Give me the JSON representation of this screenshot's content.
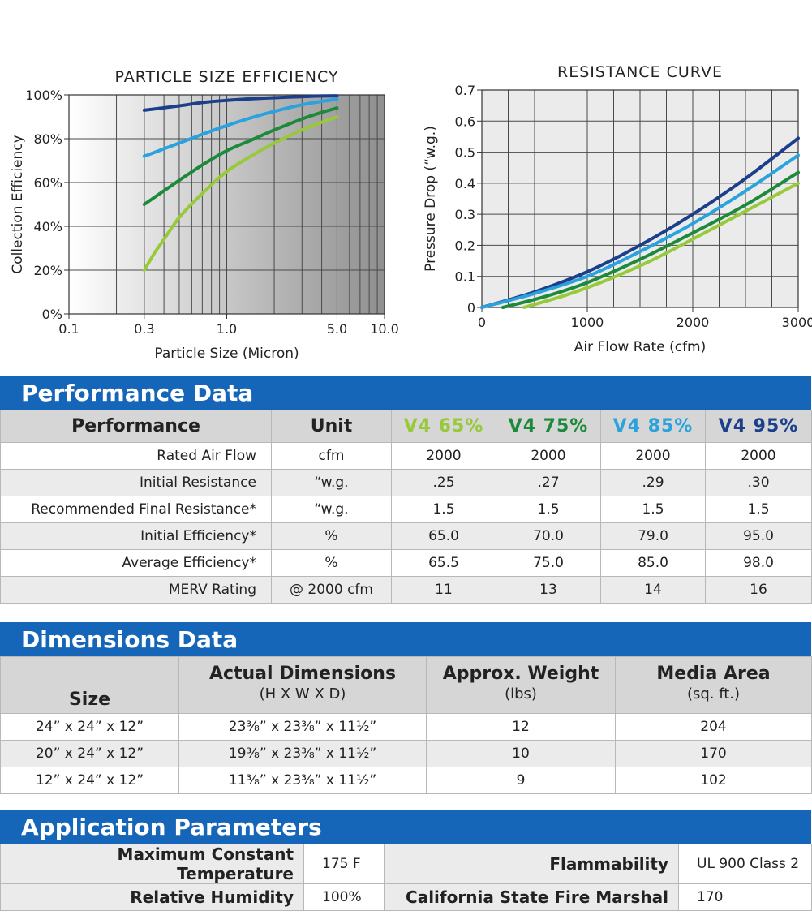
{
  "chart_data": [
    {
      "type": "line",
      "title": "PARTICLE SIZE EFFICIENCY",
      "xlabel": "Particle Size (Micron)",
      "ylabel": "Collection Efficiency",
      "x_scale": "log",
      "xlim": [
        0.1,
        10.0
      ],
      "ylim": [
        0,
        100
      ],
      "x_ticks": [
        "0.1",
        "0.3",
        "1.0",
        "5.0",
        "10.0"
      ],
      "x_tick_values": [
        0.1,
        0.3,
        1.0,
        5.0,
        10.0
      ],
      "y_ticks": [
        "0%",
        "20%",
        "40%",
        "60%",
        "80%",
        "100%"
      ],
      "y_tick_values": [
        0,
        20,
        40,
        60,
        80,
        100
      ],
      "grid": true,
      "series": [
        {
          "color": "#1c3f8c",
          "x": [
            0.3,
            0.5,
            0.7,
            1.0,
            1.5,
            2.0,
            3.0,
            4.0,
            5.0
          ],
          "y": [
            93,
            95,
            96.5,
            97.5,
            98.3,
            98.7,
            99.2,
            99.5,
            99.6
          ]
        },
        {
          "color": "#2aa2dd",
          "x": [
            0.3,
            0.5,
            0.7,
            1.0,
            1.5,
            2.0,
            3.0,
            4.0,
            5.0
          ],
          "y": [
            72,
            78,
            82,
            86,
            90,
            92.5,
            95.5,
            97,
            98
          ]
        },
        {
          "color": "#1c8a3a",
          "x": [
            0.3,
            0.5,
            0.7,
            1.0,
            1.5,
            2.0,
            3.0,
            4.0,
            5.0
          ],
          "y": [
            50,
            61,
            68,
            74.5,
            80,
            84,
            89,
            92,
            94
          ]
        },
        {
          "color": "#97c93a",
          "x": [
            0.3,
            0.35,
            0.4,
            0.5,
            0.7,
            1.0,
            1.5,
            2.0,
            3.0,
            4.0,
            5.0
          ],
          "y": [
            20,
            28,
            34,
            44,
            55,
            65,
            73,
            78,
            84,
            87.5,
            90
          ]
        }
      ]
    },
    {
      "type": "line",
      "title": "RESISTANCE CURVE",
      "xlabel": "Air Flow Rate (cfm)",
      "ylabel": "Pressure Drop (“w.g.)",
      "xlim": [
        0,
        3000
      ],
      "ylim": [
        0,
        0.7
      ],
      "x_ticks": [
        "0",
        "1000",
        "2000",
        "3000"
      ],
      "x_tick_values": [
        0,
        1000,
        2000,
        3000
      ],
      "y_ticks": [
        "0",
        "0.1",
        "0.2",
        "0.3",
        "0.4",
        "0.5",
        "0.6",
        "0.7"
      ],
      "y_tick_values": [
        0,
        0.1,
        0.2,
        0.3,
        0.4,
        0.5,
        0.6,
        0.7
      ],
      "grid": true,
      "series": [
        {
          "color": "#1c3f8c",
          "x": [
            0,
            500,
            1000,
            1500,
            2000,
            2500,
            3000
          ],
          "y": [
            0,
            0.05,
            0.115,
            0.2,
            0.3,
            0.415,
            0.545
          ]
        },
        {
          "color": "#2aa2dd",
          "x": [
            0,
            500,
            1000,
            1500,
            2000,
            2500,
            3000
          ],
          "y": [
            0,
            0.045,
            0.1,
            0.18,
            0.27,
            0.375,
            0.49
          ]
        },
        {
          "color": "#1c8a3a",
          "x": [
            200,
            600,
            1000,
            1500,
            2000,
            2500,
            3000
          ],
          "y": [
            0,
            0.035,
            0.08,
            0.155,
            0.24,
            0.33,
            0.435
          ]
        },
        {
          "color": "#97c93a",
          "x": [
            400,
            800,
            1200,
            1600,
            2000,
            2500,
            3000
          ],
          "y": [
            0,
            0.04,
            0.09,
            0.15,
            0.22,
            0.31,
            0.4
          ]
        }
      ]
    }
  ],
  "performance": {
    "heading": "Performance Data",
    "col_performance": "Performance",
    "col_unit": "Unit",
    "products": [
      "V4 65%",
      "V4 75%",
      "V4 85%",
      "V4 95%"
    ],
    "rows": [
      {
        "label": "Rated Air Flow",
        "unit": "cfm",
        "values": [
          "2000",
          "2000",
          "2000",
          "2000"
        ]
      },
      {
        "label": "Initial Resistance",
        "unit": "“w.g.",
        "values": [
          ".25",
          ".27",
          ".29",
          ".30"
        ]
      },
      {
        "label": "Recommended Final Resistance*",
        "unit": "“w.g.",
        "values": [
          "1.5",
          "1.5",
          "1.5",
          "1.5"
        ]
      },
      {
        "label": "Initial Efficiency*",
        "unit": "%",
        "values": [
          "65.0",
          "70.0",
          "79.0",
          "95.0"
        ]
      },
      {
        "label": "Average Efficiency*",
        "unit": "%",
        "values": [
          "65.5",
          "75.0",
          "85.0",
          "98.0"
        ]
      },
      {
        "label": "MERV Rating",
        "unit": "@ 2000 cfm",
        "values": [
          "11",
          "13",
          "14",
          "16"
        ]
      }
    ]
  },
  "dimensions": {
    "heading": "Dimensions Data",
    "col_size": "Size",
    "col_actual": "Actual Dimensions",
    "col_actual_sub": "(H X W X D)",
    "col_weight": "Approx. Weight",
    "col_weight_sub": "(lbs)",
    "col_media": "Media Area",
    "col_media_sub": "(sq. ft.)",
    "rows": [
      {
        "size": "24” x 24” x 12”",
        "actual": "23³⁄₈” x 23³⁄₈” x 11¹⁄₂”",
        "weight": "12",
        "media": "204"
      },
      {
        "size": "20” x 24” x 12”",
        "actual": "19³⁄₈” x 23³⁄₈” x 11¹⁄₂”",
        "weight": "10",
        "media": "170"
      },
      {
        "size": "12” x 24” x 12”",
        "actual": "11³⁄₈” x 23³⁄₈” x 11¹⁄₂”",
        "weight": "9",
        "media": "102"
      }
    ]
  },
  "application": {
    "heading": "Application Parameters",
    "rows": [
      {
        "k1": "Maximum Constant Temperature",
        "v1": "175 F",
        "k2": "Flammability",
        "v2": "UL 900 Class 2"
      },
      {
        "k1": "Relative Humidity",
        "v1": "100%",
        "k2": "California State Fire Marshal",
        "v2": "170"
      }
    ]
  }
}
